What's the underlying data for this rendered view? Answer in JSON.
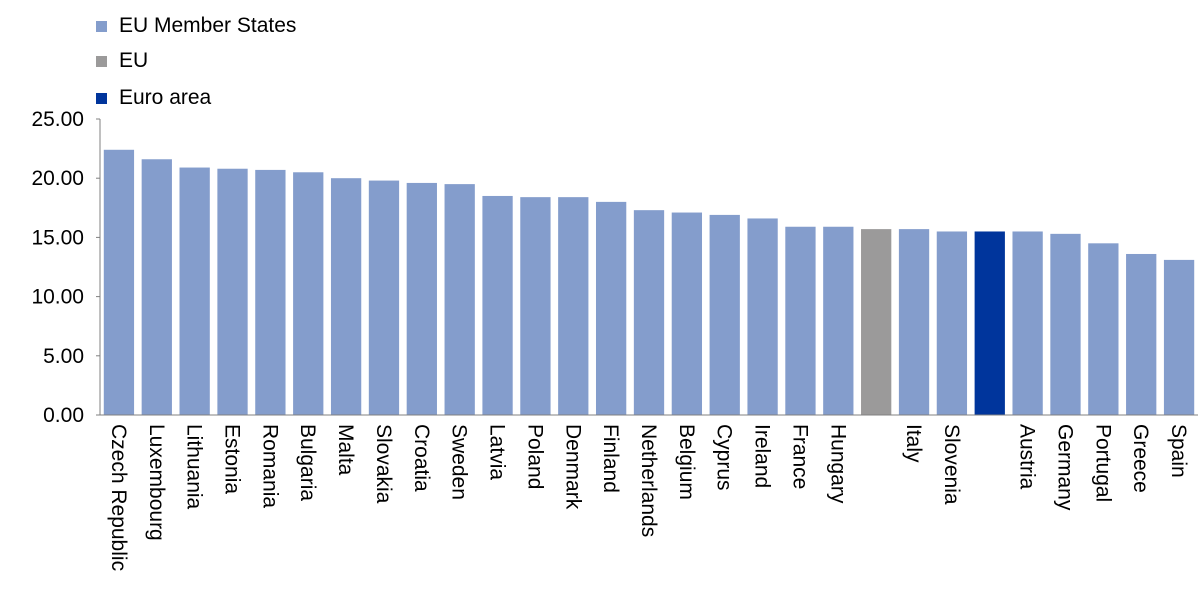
{
  "chart_data": {
    "type": "bar",
    "categories": [
      "Czech Republic",
      "Luxembourg",
      "Lithuania",
      "Estonia",
      "Romania",
      "Bulgaria",
      "Malta",
      "Slovakia",
      "Croatia",
      "Sweden",
      "Latvia",
      "Poland",
      "Denmark",
      "Finland",
      "Netherlands",
      "Belgium",
      "Cyprus",
      "Ireland",
      "France",
      "Hungary",
      "",
      "Italy",
      "Slovenia",
      "",
      "Austria",
      "Germany",
      "Portugal",
      "Greece",
      "Spain"
    ],
    "values": [
      22.4,
      21.6,
      20.9,
      20.8,
      20.7,
      20.5,
      20.0,
      19.8,
      19.6,
      19.5,
      18.5,
      18.4,
      18.4,
      18.0,
      17.3,
      17.1,
      16.9,
      16.6,
      15.9,
      15.9,
      15.7,
      15.7,
      15.5,
      15.5,
      15.5,
      15.3,
      14.5,
      13.6,
      13.1
    ],
    "groups": [
      "member",
      "member",
      "member",
      "member",
      "member",
      "member",
      "member",
      "member",
      "member",
      "member",
      "member",
      "member",
      "member",
      "member",
      "member",
      "member",
      "member",
      "member",
      "member",
      "member",
      "eu",
      "member",
      "member",
      "euro",
      "member",
      "member",
      "member",
      "member",
      "member"
    ],
    "legend": [
      {
        "key": "member",
        "label": "EU Member States",
        "color": "#849dcc"
      },
      {
        "key": "eu",
        "label": "EU",
        "color": "#9b9a9a"
      },
      {
        "key": "euro",
        "label": "Euro area",
        "color": "#00359c"
      }
    ],
    "ylim": [
      0,
      25
    ],
    "yticks": [
      "0.00",
      "5.00",
      "10.00",
      "15.00",
      "20.00",
      "25.00"
    ],
    "ytick_values": [
      0,
      5,
      10,
      15,
      20,
      25
    ],
    "grid": false,
    "legend_position": "top-left"
  }
}
